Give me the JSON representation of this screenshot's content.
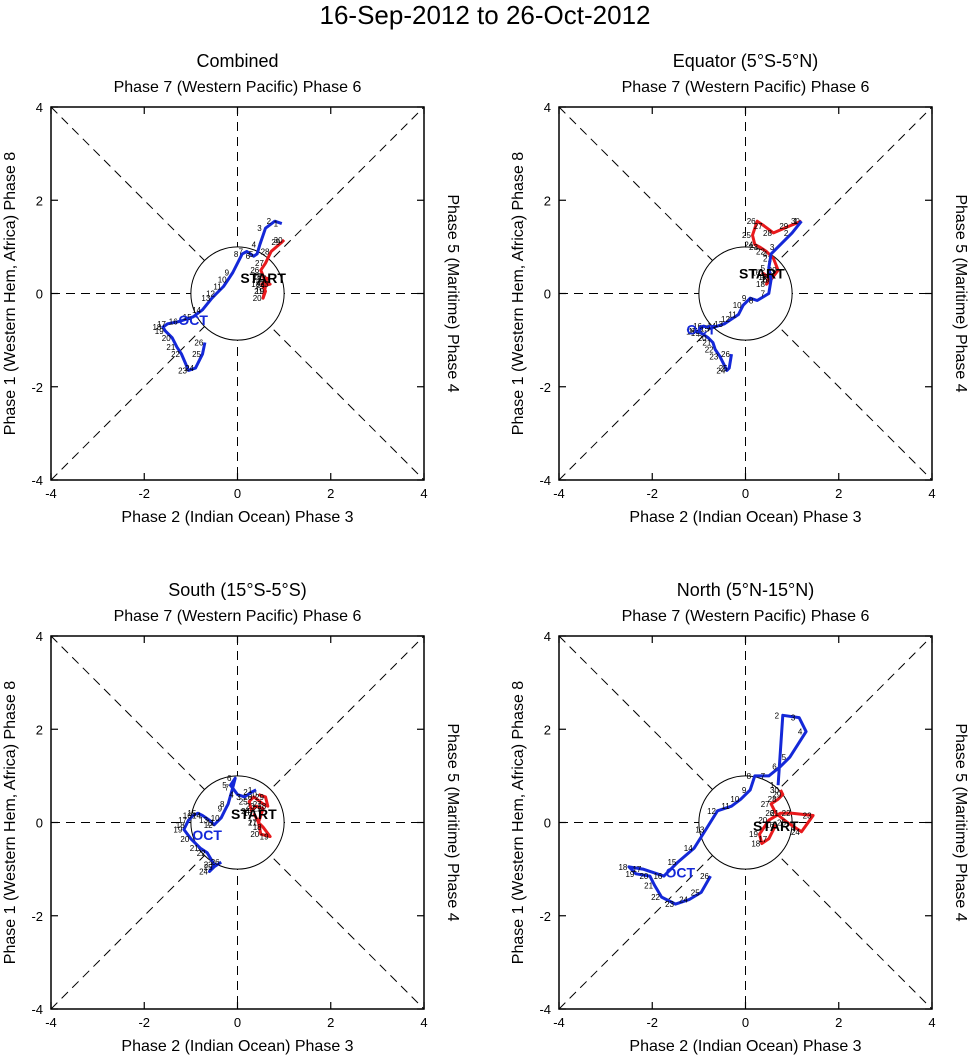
{
  "figure_title": "16-Sep-2012 to 26-Oct-2012",
  "colors": {
    "september": "#e8191c",
    "october": "#1428d8",
    "axis": "#000000"
  },
  "chart_data": [
    {
      "type": "line",
      "title": "Combined",
      "top_label": "Phase 7 (Western Pacific) Phase 6",
      "bottom_label": "Phase 2 (Indian Ocean) Phase 3",
      "left_label": "Phase 1 (Western Hem, Africa) Phase 8",
      "right_label": "Phase 5 (Maritime) Phase 4",
      "xlim": [
        -4,
        4
      ],
      "ylim": [
        -4,
        4
      ],
      "x_ticks": [
        "-4",
        "-2",
        "0",
        "2",
        "4"
      ],
      "y_ticks": [
        "-4",
        "-2",
        "0",
        "2",
        "4"
      ],
      "start_label": "START",
      "start_point": [
        0.55,
        0.35
      ],
      "month_label": "OCT",
      "month_label_at": [
        -0.95,
        -0.55
      ],
      "series": [
        {
          "name": "Sep",
          "days": [
            "16",
            "17",
            "18",
            "19",
            "20",
            "21",
            "22",
            "23",
            "24",
            "25",
            "26",
            "27",
            "28",
            "29",
            "30"
          ],
          "x": [
            0.55,
            0.65,
            0.52,
            0.6,
            0.55,
            0.58,
            0.62,
            0.7,
            0.62,
            0.55,
            0.5,
            0.6,
            0.72,
            0.95,
            1.0
          ],
          "y": [
            0.35,
            0.32,
            0.2,
            0.05,
            -0.1,
            0.05,
            0.25,
            0.2,
            0.18,
            0.38,
            0.5,
            0.65,
            0.9,
            1.1,
            1.15
          ]
        },
        {
          "name": "Oct",
          "days": [
            "1",
            "2",
            "3",
            "4",
            "5",
            "6",
            "7",
            "8",
            "9",
            "10",
            "11",
            "12",
            "13",
            "14",
            "15",
            "16",
            "17",
            "18",
            "19",
            "20",
            "21",
            "22",
            "23",
            "24",
            "25",
            "26"
          ],
          "x": [
            0.95,
            0.8,
            0.6,
            0.48,
            0.42,
            0.35,
            0.2,
            0.1,
            -0.1,
            -0.2,
            -0.3,
            -0.45,
            -0.55,
            -0.75,
            -0.95,
            -1.25,
            -1.5,
            -1.6,
            -1.55,
            -1.4,
            -1.3,
            -1.2,
            -1.05,
            -0.9,
            -0.75,
            -0.7
          ],
          "y": [
            1.5,
            1.55,
            1.4,
            1.05,
            0.85,
            0.8,
            0.9,
            0.85,
            0.45,
            0.3,
            0.15,
            0.0,
            -0.1,
            -0.35,
            -0.5,
            -0.6,
            -0.65,
            -0.72,
            -0.8,
            -0.95,
            -1.15,
            -1.3,
            -1.65,
            -1.6,
            -1.3,
            -1.05
          ]
        }
      ]
    },
    {
      "type": "line",
      "title": "Equator (5°S-5°N)",
      "top_label": "Phase 7 (Western Pacific) Phase 6",
      "bottom_label": "Phase 2 (Indian Ocean) Phase 3",
      "left_label": "Phase 1 (Western Hem, Africa) Phase 8",
      "right_label": "Phase 5 (Maritime) Phase 4",
      "xlim": [
        -4,
        4
      ],
      "ylim": [
        -4,
        4
      ],
      "x_ticks": [
        "-4",
        "-2",
        "0",
        "2",
        "4"
      ],
      "y_ticks": [
        "-4",
        "-2",
        "0",
        "2",
        "4"
      ],
      "start_label": "START",
      "start_point": [
        0.35,
        0.45
      ],
      "month_label": "OCT",
      "month_label_at": [
        -0.95,
        -0.75
      ],
      "series": [
        {
          "name": "Sep",
          "days": [
            "16",
            "17",
            "18",
            "19",
            "20",
            "21",
            "22",
            "23",
            "24",
            "25",
            "26",
            "27",
            "28",
            "29",
            "30"
          ],
          "x": [
            0.35,
            0.5,
            0.45,
            0.55,
            0.7,
            0.6,
            0.45,
            0.3,
            0.2,
            0.15,
            0.25,
            0.4,
            0.6,
            0.95,
            1.2
          ],
          "y": [
            0.45,
            0.35,
            0.2,
            0.3,
            0.5,
            0.75,
            0.9,
            1.0,
            1.05,
            1.25,
            1.55,
            1.45,
            1.3,
            1.45,
            1.55
          ]
        },
        {
          "name": "Oct",
          "days": [
            "1",
            "2",
            "3",
            "4",
            "5",
            "6",
            "7",
            "8",
            "9",
            "10",
            "11",
            "12",
            "13",
            "14",
            "15",
            "16",
            "17",
            "18",
            "19",
            "20",
            "21",
            "22",
            "23",
            "24",
            "25",
            "26"
          ],
          "x": [
            1.2,
            1.0,
            0.7,
            0.55,
            0.5,
            0.55,
            0.5,
            0.25,
            0.1,
            -0.05,
            -0.15,
            -0.3,
            -0.45,
            -0.6,
            -0.75,
            -0.9,
            -1.0,
            -1.05,
            -0.95,
            -0.8,
            -0.7,
            -0.65,
            -0.55,
            -0.4,
            -0.35,
            -0.3
          ],
          "y": [
            1.55,
            1.3,
            1.0,
            0.85,
            0.55,
            0.3,
            0.0,
            -0.15,
            -0.1,
            -0.25,
            -0.45,
            -0.55,
            -0.65,
            -0.7,
            -0.75,
            -0.7,
            -0.8,
            -0.82,
            -0.85,
            -0.95,
            -1.05,
            -1.2,
            -1.35,
            -1.65,
            -1.6,
            -1.3
          ]
        }
      ]
    },
    {
      "type": "line",
      "title": "South (15°S-5°S)",
      "top_label": "Phase 7 (Western Pacific) Phase 6",
      "bottom_label": "Phase 2 (Indian Ocean) Phase 3",
      "left_label": "Phase 1 (Western Hem, Africa) Phase 8",
      "right_label": "Phase 5 (Maritime) Phase 4",
      "xlim": [
        -4,
        4
      ],
      "ylim": [
        -4,
        4
      ],
      "x_ticks": [
        "-4",
        "-2",
        "0",
        "2",
        "4"
      ],
      "y_ticks": [
        "-4",
        "-2",
        "0",
        "2",
        "4"
      ],
      "start_label": "START",
      "start_point": [
        0.35,
        0.2
      ],
      "month_label": "OCT",
      "month_label_at": [
        -0.65,
        -0.25
      ],
      "series": [
        {
          "name": "Sep",
          "days": [
            "16",
            "17",
            "18",
            "19",
            "20",
            "21",
            "22",
            "23",
            "24",
            "25",
            "26",
            "27",
            "28",
            "29",
            "30"
          ],
          "x": [
            0.35,
            0.45,
            0.55,
            0.7,
            0.5,
            0.45,
            0.55,
            0.4,
            0.3,
            0.25,
            0.35,
            0.55,
            0.65,
            0.6,
            0.45
          ],
          "y": [
            0.2,
            0.0,
            -0.1,
            -0.3,
            -0.25,
            0.0,
            0.3,
            0.35,
            0.25,
            0.45,
            0.55,
            0.4,
            0.35,
            0.55,
            0.6
          ]
        },
        {
          "name": "Oct",
          "days": [
            "1",
            "2",
            "3",
            "4",
            "5",
            "6",
            "7",
            "8",
            "9",
            "10",
            "11",
            "12",
            "13",
            "14",
            "15",
            "16",
            "17",
            "18",
            "19",
            "20",
            "21",
            "22",
            "23",
            "24",
            "25",
            "26"
          ],
          "x": [
            0.4,
            0.3,
            0.15,
            0.0,
            -0.15,
            -0.05,
            -0.1,
            -0.2,
            -0.25,
            -0.35,
            -0.45,
            -0.5,
            -0.6,
            -0.75,
            -0.85,
            -0.95,
            -1.05,
            -1.1,
            -1.15,
            -1.0,
            -0.8,
            -0.65,
            -0.5,
            -0.6,
            -0.5,
            -0.35
          ],
          "y": [
            0.7,
            0.65,
            0.55,
            0.6,
            0.8,
            0.95,
            0.75,
            0.4,
            0.3,
            0.1,
            0.0,
            -0.05,
            0.05,
            0.15,
            0.2,
            0.15,
            0.05,
            -0.05,
            -0.15,
            -0.35,
            -0.55,
            -0.65,
            -0.9,
            -1.05,
            -0.95,
            -0.85
          ]
        }
      ]
    },
    {
      "type": "line",
      "title": "North (5°N-15°N)",
      "top_label": "Phase 7 (Western Pacific) Phase 6",
      "bottom_label": "Phase 2 (Indian Ocean) Phase 3",
      "left_label": "Phase 1 (Western Hem, Africa) Phase 8",
      "right_label": "Phase 5 (Maritime) Phase 4",
      "xlim": [
        -4,
        4
      ],
      "ylim": [
        -4,
        4
      ],
      "x_ticks": [
        "-4",
        "-2",
        "0",
        "2",
        "4"
      ],
      "y_ticks": [
        "-4",
        "-2",
        "0",
        "2",
        "4"
      ],
      "start_label": "START",
      "start_point": [
        0.65,
        -0.05
      ],
      "month_label": "OCT",
      "month_label_at": [
        -1.4,
        -1.05
      ],
      "series": [
        {
          "name": "Sep",
          "days": [
            "16",
            "17",
            "18",
            "19",
            "20",
            "21",
            "22",
            "23",
            "24",
            "25",
            "26",
            "27",
            "28",
            "29",
            "30"
          ],
          "x": [
            0.65,
            0.5,
            0.35,
            0.3,
            0.5,
            0.75,
            1.0,
            1.45,
            1.2,
            0.9,
            0.65,
            0.55,
            0.7,
            0.8,
            0.75
          ],
          "y": [
            -0.05,
            -0.35,
            -0.45,
            -0.25,
            0.05,
            0.2,
            0.2,
            0.15,
            -0.2,
            0.0,
            0.2,
            0.4,
            0.5,
            0.6,
            0.7
          ]
        },
        {
          "name": "Oct",
          "days": [
            "1",
            "2",
            "3",
            "4",
            "5",
            "6",
            "7",
            "8",
            "9",
            "10",
            "11",
            "12",
            "13",
            "14",
            "15",
            "16",
            "17",
            "18",
            "19",
            "20",
            "21",
            "22",
            "23",
            "24",
            "25",
            "26"
          ],
          "x": [
            0.7,
            0.8,
            1.15,
            1.3,
            0.95,
            0.75,
            0.5,
            0.2,
            0.1,
            -0.1,
            -0.3,
            -0.6,
            -0.85,
            -1.1,
            -1.45,
            -1.75,
            -2.2,
            -2.5,
            -2.35,
            -2.05,
            -1.95,
            -1.8,
            -1.5,
            -1.2,
            -0.95,
            -0.75
          ],
          "y": [
            0.8,
            2.3,
            2.25,
            1.95,
            1.4,
            1.2,
            1.0,
            1.0,
            0.7,
            0.5,
            0.35,
            0.25,
            -0.15,
            -0.55,
            -0.85,
            -1.15,
            -1.0,
            -0.95,
            -1.1,
            -1.15,
            -1.35,
            -1.6,
            -1.75,
            -1.65,
            -1.5,
            -1.15
          ]
        }
      ]
    }
  ]
}
